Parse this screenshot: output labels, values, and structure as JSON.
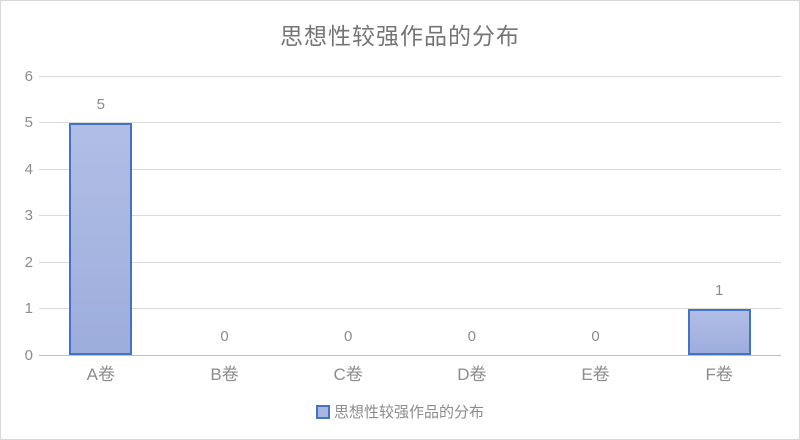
{
  "chart_data": {
    "type": "bar",
    "title": "思想性较强作品的分布",
    "categories": [
      "A卷",
      "B卷",
      "C卷",
      "D卷",
      "E卷",
      "F卷"
    ],
    "values": [
      5,
      0,
      0,
      0,
      0,
      1
    ],
    "yticks": [
      0,
      1,
      2,
      3,
      4,
      5,
      6
    ],
    "ylim": [
      0,
      6
    ],
    "xlabel": "",
    "ylabel": "",
    "grid": true,
    "data_labels_shown": true,
    "legend": {
      "label": "思想性较强作品的分布",
      "position": "bottom"
    },
    "colors": {
      "bar_fill_top": "#b1bee6",
      "bar_fill_bottom": "#9daddc",
      "bar_border": "#4472c4",
      "gridline": "#d9d9d9",
      "axis_line": "#bfbfbf",
      "tick_text": "#8c8c8c",
      "title_text": "#757575",
      "chart_border": "#d6d6d6"
    }
  }
}
